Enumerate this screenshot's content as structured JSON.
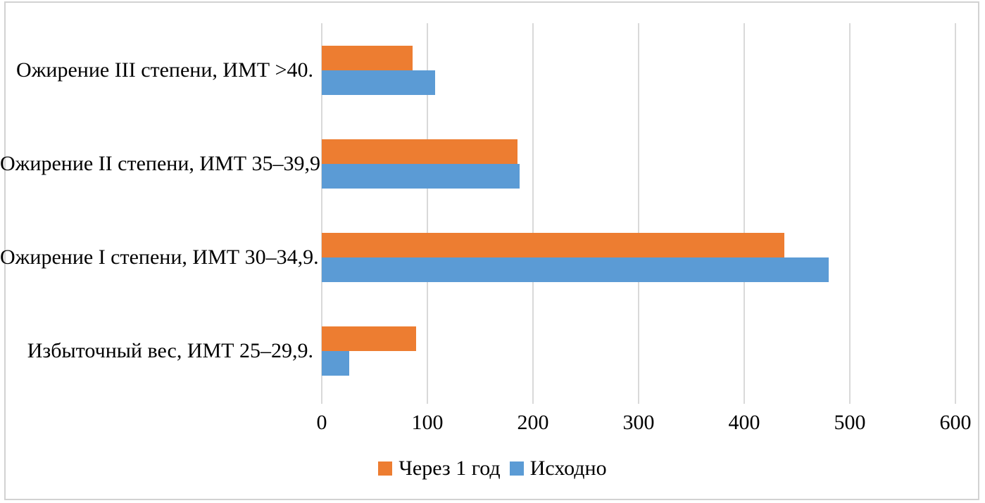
{
  "chart_data": {
    "type": "bar",
    "orientation": "horizontal",
    "title": "",
    "categories": [
      "Ожирение III степени, ИМТ >40.",
      "Ожирение II степени, ИМТ 35–39,9.",
      "Ожирение I степени, ИМТ 30–34,9.",
      "Избыточный вес, ИМТ 25–29,9."
    ],
    "series": [
      {
        "name": "Через 1 год",
        "color": "#ED7D31",
        "values": [
          86,
          185,
          438,
          89
        ]
      },
      {
        "name": "Исходно",
        "color": "#5B9BD5",
        "values": [
          107,
          187,
          480,
          26
        ]
      }
    ],
    "xlim": [
      0,
      600
    ],
    "xticks": [
      0,
      100,
      200,
      300,
      400,
      500,
      600
    ],
    "grid": "vertical-gridlines",
    "legend_position": "bottom-center",
    "colors": {
      "gridline": "#D9D9D9",
      "frame_border": "#D2D2D2",
      "background": "#FFFFFF",
      "text": "#000000"
    }
  }
}
